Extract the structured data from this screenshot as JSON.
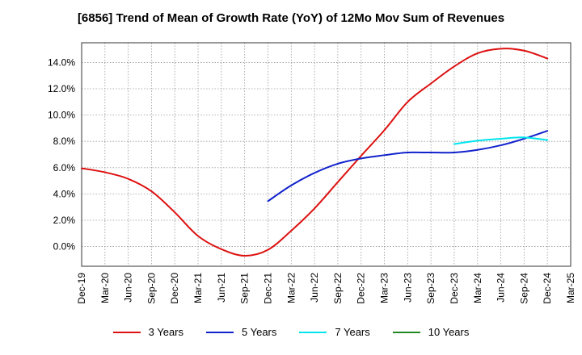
{
  "chart_data": {
    "type": "line",
    "title": "[6856]  Trend of Mean of Growth Rate (YoY) of 12Mo Mov Sum of Revenues",
    "xlabel": "",
    "ylabel": "",
    "x_ticks": [
      "Dec-19",
      "Mar-20",
      "Jun-20",
      "Sep-20",
      "Dec-20",
      "Mar-21",
      "Jun-21",
      "Sep-21",
      "Dec-21",
      "Mar-22",
      "Jun-22",
      "Sep-22",
      "Dec-22",
      "Mar-23",
      "Jun-23",
      "Sep-23",
      "Dec-23",
      "Mar-24",
      "Jun-24",
      "Sep-24",
      "Dec-24",
      "Mar-25"
    ],
    "y_ticks": [
      "0.0%",
      "2.0%",
      "4.0%",
      "6.0%",
      "8.0%",
      "10.0%",
      "12.0%",
      "14.0%"
    ],
    "ylim": [
      -1.5,
      15.5
    ],
    "grid": true,
    "legend_position": "bottom",
    "series": [
      {
        "name": "3 Years",
        "color": "#dd1111",
        "x": [
          "Dec-19",
          "Mar-20",
          "Jun-20",
          "Sep-20",
          "Dec-20",
          "Mar-21",
          "Jun-21",
          "Sep-21",
          "Dec-21",
          "Mar-22",
          "Jun-22",
          "Sep-22",
          "Dec-22",
          "Mar-23",
          "Jun-23",
          "Sep-23",
          "Dec-23",
          "Mar-24",
          "Jun-24",
          "Sep-24",
          "Dec-24"
        ],
        "values": [
          5.95,
          5.65,
          5.15,
          4.2,
          2.6,
          0.8,
          -0.2,
          -0.7,
          -0.25,
          1.2,
          2.9,
          4.9,
          6.9,
          8.85,
          11.0,
          12.4,
          13.7,
          14.7,
          15.05,
          14.9,
          14.3
        ]
      },
      {
        "name": "5 Years",
        "color": "#1122cc",
        "x": [
          "Dec-21",
          "Mar-22",
          "Jun-22",
          "Sep-22",
          "Dec-22",
          "Mar-23",
          "Jun-23",
          "Sep-23",
          "Dec-23",
          "Mar-24",
          "Jun-24",
          "Sep-24",
          "Dec-24"
        ],
        "values": [
          3.45,
          4.65,
          5.6,
          6.3,
          6.7,
          6.95,
          7.15,
          7.15,
          7.15,
          7.35,
          7.7,
          8.2,
          8.8
        ]
      },
      {
        "name": "7 Years",
        "color": "#00e5ee",
        "x": [
          "Dec-23",
          "Mar-24",
          "Jun-24",
          "Sep-24",
          "Dec-24"
        ],
        "values": [
          7.8,
          8.05,
          8.2,
          8.3,
          8.1
        ]
      },
      {
        "name": "10 Years",
        "color": "#228822",
        "x": [],
        "values": []
      }
    ]
  }
}
